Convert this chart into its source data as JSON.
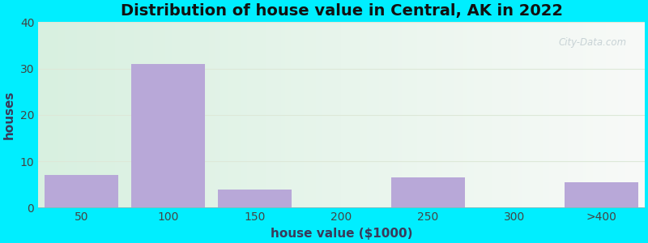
{
  "title": "Distribution of house value in Central, AK in 2022",
  "xlabel": "house value ($1000)",
  "ylabel": "houses",
  "categories": [
    "50",
    "100",
    "150",
    "200",
    "250",
    "300",
    ">400"
  ],
  "values": [
    7,
    31,
    4,
    0,
    6.5,
    0,
    5.5
  ],
  "bar_color": "#b8a8d8",
  "ylim": [
    0,
    40
  ],
  "yticks": [
    0,
    10,
    20,
    30,
    40
  ],
  "background_outer": "#00eeff",
  "grid_color": "#dde8d8",
  "title_fontsize": 14,
  "axis_label_fontsize": 11,
  "tick_fontsize": 10,
  "title_color": "#111111",
  "axis_label_color": "#3a3a5a",
  "tick_color": "#444444",
  "watermark_text": "City-Data.com",
  "watermark_color": "#c0ccd0",
  "bg_left_color": "#d8f0e0",
  "bg_right_color": "#f8faf8"
}
